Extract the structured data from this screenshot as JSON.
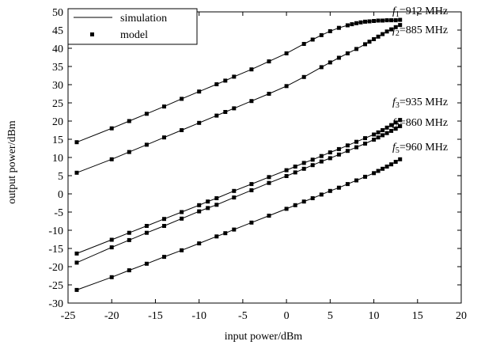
{
  "chart_data": {
    "type": "line",
    "xlabel": "input power/dBm",
    "ylabel": "output power/dBm",
    "xlim": [
      -25,
      20
    ],
    "ylim": [
      -30,
      50
    ],
    "xticks": [
      -25,
      -20,
      -15,
      -10,
      -5,
      0,
      5,
      10,
      15,
      20
    ],
    "yticks": [
      -30,
      -25,
      -20,
      -15,
      -10,
      -5,
      0,
      5,
      10,
      15,
      20,
      25,
      30,
      35,
      40,
      45,
      50
    ],
    "grid": false,
    "legend": {
      "position": "top-left",
      "entries": [
        {
          "label": "simulation",
          "style": "line"
        },
        {
          "label": "model",
          "style": "square-marker"
        }
      ]
    },
    "series": [
      {
        "name": "f1=912 MHz",
        "label_prefix": "f",
        "label_sub": "1",
        "label_suffix": "=912 MHz",
        "x": [
          -24,
          -20,
          -18,
          -16,
          -14,
          -12,
          -10,
          -8,
          -7,
          -6,
          -4,
          -2,
          0,
          2,
          3,
          4,
          5,
          6,
          7,
          7.5,
          8,
          8.5,
          9,
          9.5,
          10,
          10.5,
          11,
          11.5,
          12,
          12.5,
          13
        ],
        "y": [
          14.2,
          18,
          20,
          22,
          24,
          26.1,
          28.1,
          30.1,
          31.1,
          32.2,
          34.2,
          36.4,
          38.6,
          41.2,
          42.4,
          43.6,
          44.7,
          45.6,
          46.3,
          46.6,
          46.9,
          47.1,
          47.3,
          47.4,
          47.5,
          47.6,
          47.6,
          47.7,
          47.7,
          47.7,
          47.8
        ]
      },
      {
        "name": "f2=885 MHz",
        "label_prefix": "f",
        "label_sub": "2",
        "label_suffix": "=885 MHz",
        "x": [
          -24,
          -20,
          -18,
          -16,
          -14,
          -12,
          -10,
          -8,
          -7,
          -6,
          -4,
          -2,
          0,
          2,
          4,
          5,
          6,
          7,
          8,
          9,
          9.5,
          10,
          10.5,
          11,
          11.5,
          12,
          12.5,
          13
        ],
        "y": [
          5.8,
          9.5,
          11.5,
          13.5,
          15.5,
          17.5,
          19.5,
          21.5,
          22.5,
          23.5,
          25.5,
          27.5,
          29.6,
          32.1,
          34.8,
          36.1,
          37.4,
          38.6,
          39.8,
          41.1,
          41.8,
          42.5,
          43.2,
          43.9,
          44.6,
          45.2,
          45.8,
          46.4
        ]
      },
      {
        "name": "f3=935 MHz",
        "label_prefix": "f",
        "label_sub": "3",
        "label_suffix": "=935 MHz",
        "x": [
          -24,
          -20,
          -18,
          -16,
          -14,
          -12,
          -10,
          -9,
          -8,
          -6,
          -4,
          -2,
          0,
          1,
          2,
          3,
          4,
          5,
          6,
          7,
          8,
          9,
          10,
          10.5,
          11,
          11.5,
          12,
          12.5,
          13
        ],
        "y": [
          -16.4,
          -12.6,
          -10.7,
          -8.8,
          -6.9,
          -5,
          -3.1,
          -2.1,
          -1.2,
          0.8,
          2.7,
          4.6,
          6.5,
          7.5,
          8.5,
          9.4,
          10.4,
          11.4,
          12.3,
          13.3,
          14.3,
          15.3,
          16.3,
          16.9,
          17.5,
          18.2,
          18.9,
          19.6,
          20.3
        ]
      },
      {
        "name": "f4=860 MHz",
        "label_prefix": "f",
        "label_sub": "4",
        "label_suffix": "=860 MHz",
        "x": [
          -24,
          -20,
          -18,
          -16,
          -14,
          -12,
          -10,
          -9,
          -8,
          -6,
          -4,
          -2,
          0,
          1,
          2,
          3,
          4,
          5,
          6,
          7,
          8,
          9,
          10,
          10.5,
          11,
          11.5,
          12,
          12.5,
          13
        ],
        "y": [
          -18.9,
          -14.7,
          -12.7,
          -10.7,
          -8.8,
          -6.8,
          -4.8,
          -3.9,
          -3,
          -1,
          1,
          3,
          4.9,
          5.9,
          6.9,
          7.9,
          8.9,
          9.8,
          10.8,
          11.8,
          12.8,
          13.8,
          14.9,
          15.5,
          16.1,
          16.7,
          17.3,
          17.9,
          18.6
        ]
      },
      {
        "name": "f5=960 MHz",
        "label_prefix": "f",
        "label_sub": "5",
        "label_suffix": "=960 MHz",
        "x": [
          -24,
          -20,
          -18,
          -16,
          -14,
          -12,
          -10,
          -8,
          -7,
          -6,
          -4,
          -2,
          0,
          1,
          2,
          3,
          4,
          5,
          6,
          7,
          8,
          9,
          10,
          10.5,
          11,
          11.5,
          12,
          12.5,
          13
        ],
        "y": [
          -26.4,
          -22.9,
          -21,
          -19.2,
          -17.3,
          -15.5,
          -13.6,
          -11.7,
          -10.8,
          -9.8,
          -7.9,
          -6,
          -4.1,
          -3.1,
          -2.1,
          -1.2,
          -0.2,
          0.8,
          1.7,
          2.7,
          3.7,
          4.7,
          5.7,
          6.3,
          6.9,
          7.5,
          8.1,
          8.8,
          9.5
        ]
      }
    ]
  }
}
